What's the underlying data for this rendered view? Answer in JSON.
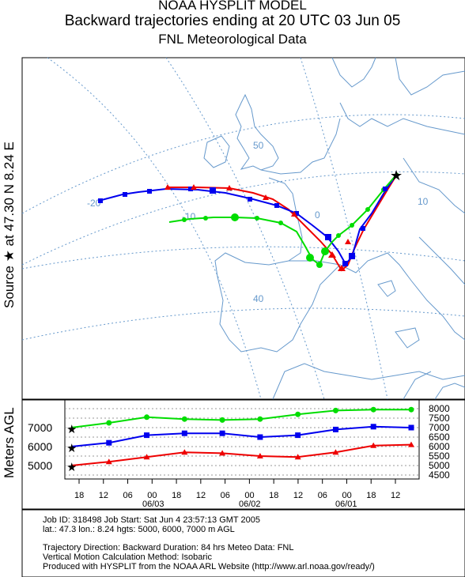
{
  "title": {
    "line1": "NOAA HYSPLIT MODEL",
    "line2": "Backward trajectories ending at 20 UTC 03 Jun 05",
    "line3": "FNL  Meteorological Data"
  },
  "source_label": "Source ★ at   47.30 N   8.24 E",
  "vertical_label": "Meters AGL",
  "map": {
    "grid_labels": [
      "50",
      "-20",
      "-10",
      "0",
      "10",
      "40"
    ],
    "source_marker": "star-icon"
  },
  "chart_data": {
    "type": "line",
    "title": "",
    "xlabel": "",
    "ylabel": "Meters AGL",
    "x_ticks": [
      "18",
      "12",
      "06",
      "00",
      "18",
      "12",
      "06",
      "00",
      "18",
      "12",
      "06",
      "00",
      "18",
      "12"
    ],
    "date_labels": [
      "06/03",
      "06/02",
      "06/01"
    ],
    "left_ticks": [
      "7000",
      "6000",
      "5000"
    ],
    "right_ticks": [
      "8000",
      "7500",
      "7000",
      "6500",
      "6000",
      "5500",
      "5000",
      "4500"
    ],
    "ylim": [
      4500,
      8000
    ],
    "series": [
      {
        "color": "#00dd00",
        "marker": "circle",
        "values": [
          7000,
          7250,
          7550,
          7450,
          7400,
          7450,
          7700,
          7900,
          7950,
          7950
        ]
      },
      {
        "color": "#0000ee",
        "marker": "square",
        "values": [
          6000,
          6200,
          6600,
          6700,
          6700,
          6500,
          6600,
          6900,
          7050,
          7000
        ]
      },
      {
        "color": "#ee0000",
        "marker": "triangle",
        "values": [
          5000,
          5200,
          5450,
          5700,
          5650,
          5500,
          5450,
          5700,
          6050,
          6100
        ]
      }
    ]
  },
  "info": {
    "line1": "Job ID: 318498          Job Start: Sat Jun  4 23:57:13 GMT 2005",
    "line2": "lat.: 47.3  lon.: 8.24  hgts: 5000, 6000, 7000 m AGL",
    "line3": "Trajectory Direction: Backward     Duration: 84 hrs     Meteo Data: FNL",
    "line4": "Vertical Motion Calculation Method: Isobaric",
    "line5": "Produced with HYSPLIT from the NOAA ARL Website (http://www.arl.noaa.gov/ready/)"
  },
  "colors": {
    "green_traj": "#00dd00",
    "blue_traj": "#0000ee",
    "red_traj": "#ee0000",
    "coast": "#6699cc",
    "grid": "#6699cc"
  }
}
